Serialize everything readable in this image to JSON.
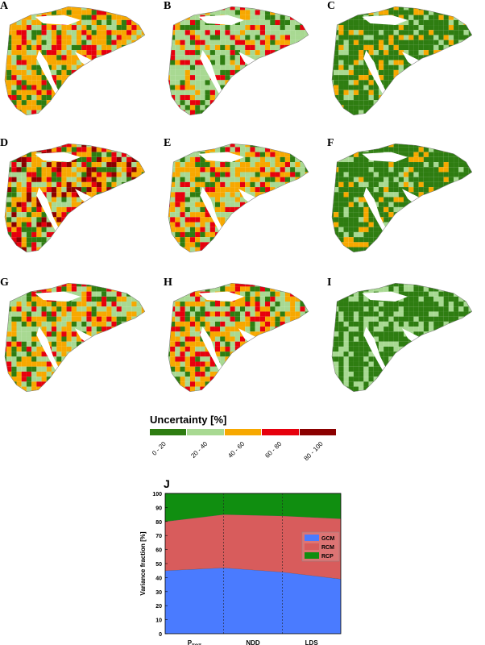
{
  "panels": [
    {
      "letter": "A",
      "palette": [
        "#f7a800",
        "#f7a800",
        "#a8d992",
        "#e6000d",
        "#2e7d11",
        "#f7a800"
      ]
    },
    {
      "letter": "B",
      "palette": [
        "#f7a800",
        "#a8d992",
        "#a8d992",
        "#2e7d11",
        "#e6000d",
        "#a8d992"
      ]
    },
    {
      "letter": "C",
      "palette": [
        "#2e7d11",
        "#2e7d11",
        "#2e7d11",
        "#a8d992",
        "#f7a800",
        "#2e7d11"
      ]
    },
    {
      "letter": "D",
      "palette": [
        "#f7a800",
        "#f7a800",
        "#a8d992",
        "#e6000d",
        "#8b0000",
        "#2e7d11"
      ]
    },
    {
      "letter": "E",
      "palette": [
        "#a8d992",
        "#2e7d11",
        "#f7a800",
        "#e6000d",
        "#a8d992",
        "#f7a800"
      ]
    },
    {
      "letter": "F",
      "palette": [
        "#2e7d11",
        "#2e7d11",
        "#2e7d11",
        "#a8d992",
        "#f7a800",
        "#2e7d11"
      ]
    },
    {
      "letter": "G",
      "palette": [
        "#a8d992",
        "#f7a800",
        "#f7a800",
        "#a8d992",
        "#2e7d11",
        "#e6000d"
      ]
    },
    {
      "letter": "H",
      "palette": [
        "#a8d992",
        "#f7a800",
        "#a8d992",
        "#e6000d",
        "#2e7d11",
        "#f7a800"
      ]
    },
    {
      "letter": "I",
      "palette": [
        "#2e7d11",
        "#2e7d11",
        "#a8d992",
        "#a8d992",
        "#2e7d11",
        "#2e7d11"
      ]
    }
  ],
  "legend": {
    "title": "Uncertainty [%]",
    "classes": [
      {
        "label": "0 - 20",
        "color": "#2e7d11"
      },
      {
        "label": "20 - 40",
        "color": "#a8d992"
      },
      {
        "label": "40 - 60",
        "color": "#f7a800"
      },
      {
        "label": "60 - 80",
        "color": "#e6000d"
      },
      {
        "label": "80 - 100",
        "color": "#8b0000"
      }
    ]
  },
  "panel_j_letter": "J",
  "chart_data": {
    "type": "area",
    "stacked": true,
    "categories": [
      "P_TOT",
      "NDD",
      "LDS"
    ],
    "category_labels": [
      {
        "main": "P",
        "sub": "TOT"
      },
      {
        "main": "NDD",
        "sub": ""
      },
      {
        "main": "LDS",
        "sub": ""
      }
    ],
    "x": [
      0,
      1,
      2
    ],
    "series": [
      {
        "name": "GCM",
        "color": "#4a7bff",
        "x": [
          -0.5,
          0.5,
          1.5,
          2.5
        ],
        "values": [
          45,
          47,
          44,
          39
        ]
      },
      {
        "name": "RCM",
        "color": "#d85c5c",
        "x": [
          -0.5,
          0.5,
          1.5,
          2.5
        ],
        "values": [
          35,
          38,
          40,
          43
        ]
      },
      {
        "name": "RCP",
        "color": "#108e10",
        "x": [
          -0.5,
          0.5,
          1.5,
          2.5
        ],
        "values": [
          20,
          15,
          16,
          18
        ]
      }
    ],
    "ylabel": "Variance fraction [%]",
    "ylim": [
      0,
      100
    ],
    "yticks": [
      0,
      10,
      20,
      30,
      40,
      50,
      60,
      70,
      80,
      90,
      100
    ],
    "grid": false,
    "separators": true,
    "legend_position": "right"
  }
}
